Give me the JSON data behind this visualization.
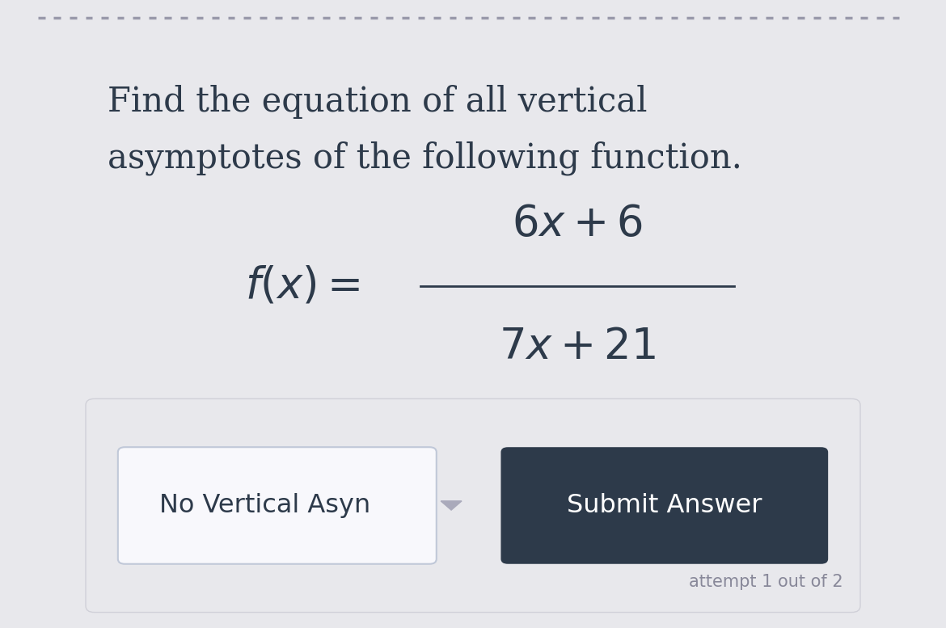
{
  "title_line1": "Find the equation of all vertical",
  "title_line2": "asymptotes of the following function.",
  "numerator": "$6x + 6$",
  "denominator": "$7x + 21$",
  "dropdown_text": "No Vertical Asyn",
  "button_text": "Submit Answer",
  "attempt_text": "attempt 1 out of 2",
  "outer_bg": "#e8e8ec",
  "card_color": "#ffffff",
  "panel_color": "#e8e8ec",
  "panel_border": "#d0d0d8",
  "dropdown_bg": "#f0f0f4",
  "dropdown_border": "#c0c8d8",
  "button_bg": "#2d3a4a",
  "text_color": "#2d3a4a",
  "button_text_color": "#ffffff",
  "attempt_text_color": "#888899",
  "dashed_line_color": "#9999aa",
  "title_fontsize": 30,
  "formula_fontsize": 38,
  "dropdown_fontsize": 23,
  "button_fontsize": 23,
  "attempt_fontsize": 15
}
